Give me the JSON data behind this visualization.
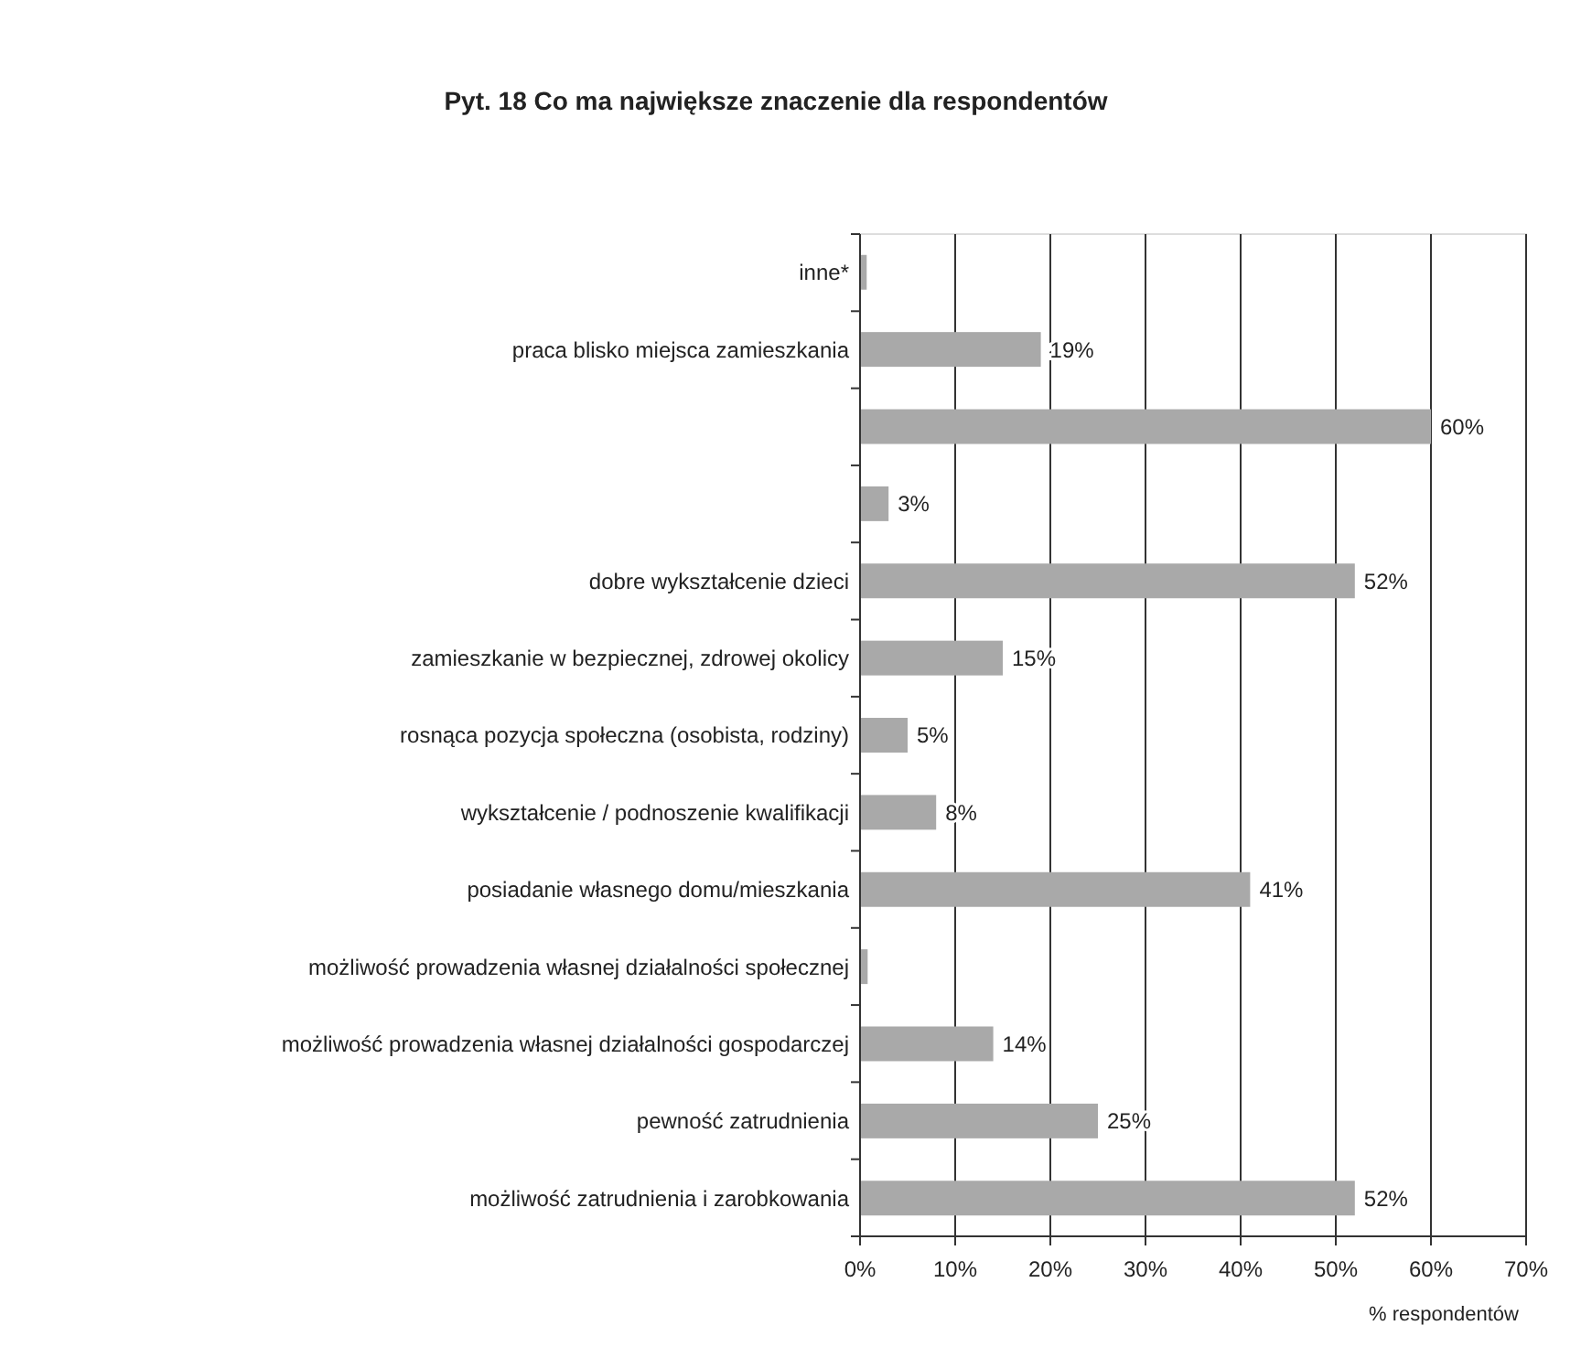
{
  "chart_data": {
    "type": "bar",
    "orientation": "horizontal",
    "title": "Pyt. 18 Co ma największe znaczenie dla respondentów",
    "xlabel": "% respondentów",
    "categories": [
      "inne*",
      "praca blisko miejsca zamieszkania",
      null,
      null,
      "dobre wykształcenie dzieci",
      "zamieszkanie w bezpiecznej, zdrowej okolicy",
      "rosnąca pozycja społeczna (osobista, rodziny)",
      "wykształcenie / podnoszenie kwalifikacji",
      "posiadanie własnego domu/mieszkania",
      "możliwość prowadzenia własnej działalności społecznej",
      "możliwość prowadzenia własnej działalności gospodarczej",
      "pewność zatrudnienia",
      "możliwość zatrudnienia i zarobkowania"
    ],
    "values": [
      0.7,
      19,
      60,
      3,
      52,
      15,
      5,
      8,
      41,
      0.8,
      14,
      25,
      52
    ],
    "value_labels": [
      null,
      "19%",
      "60%",
      "3%",
      "52%",
      "15%",
      "5%",
      "8%",
      "41%",
      null,
      "14%",
      "25%",
      "52%"
    ],
    "color": "#a9a9a9",
    "xlim": [
      0,
      70
    ],
    "xticks": [
      {
        "value": 0,
        "label": "0%"
      },
      {
        "value": 10,
        "label": "10%"
      },
      {
        "value": 20,
        "label": "20%"
      },
      {
        "value": 30,
        "label": "30%"
      },
      {
        "value": 40,
        "label": "40%"
      },
      {
        "value": 50,
        "label": "50%"
      },
      {
        "value": 60,
        "label": "60%"
      },
      {
        "value": 70,
        "label": "70%"
      }
    ],
    "grid": "x"
  }
}
